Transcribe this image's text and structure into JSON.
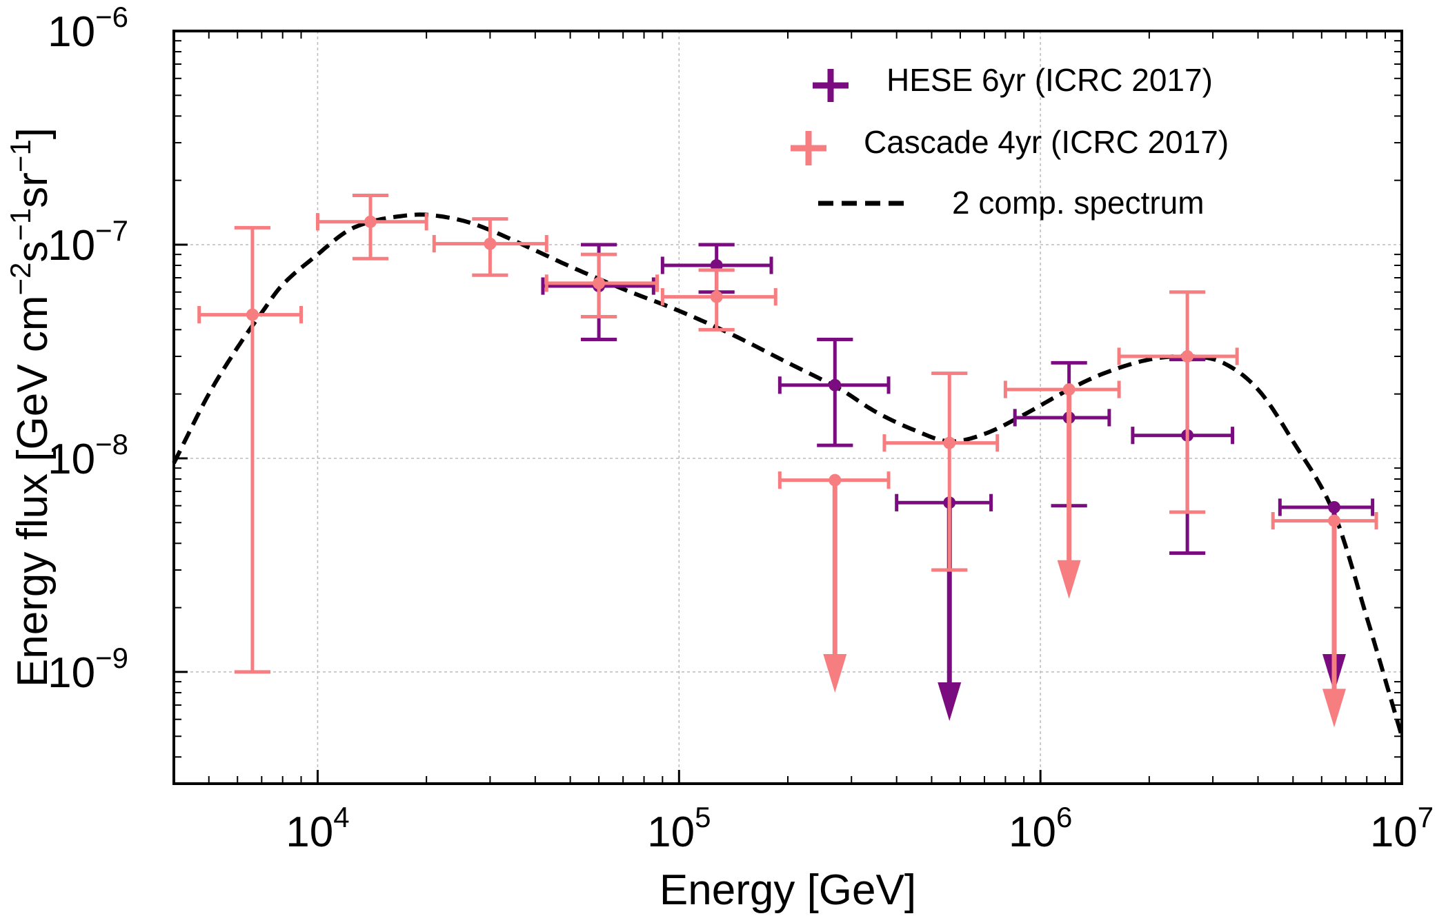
{
  "chart_data": {
    "type": "scatter",
    "xscale": "log",
    "yscale": "log",
    "xlim": [
      4000,
      10000000
    ],
    "ylim": [
      3e-10,
      1e-06
    ],
    "xlabel": "Energy [GeV]",
    "ylabel_parts": [
      "Energy flux [GeV cm",
      "−2",
      "s",
      "−1",
      "sr",
      "−1",
      "]"
    ],
    "x_ticks": [
      {
        "value": 10000,
        "base": "10",
        "exp": "4"
      },
      {
        "value": 100000,
        "base": "10",
        "exp": "5"
      },
      {
        "value": 1000000,
        "base": "10",
        "exp": "6"
      },
      {
        "value": 10000000,
        "base": "10",
        "exp": "7"
      }
    ],
    "y_ticks": [
      {
        "value": 1e-09,
        "base": "10",
        "exp": "−9"
      },
      {
        "value": 1e-08,
        "base": "10",
        "exp": "−8"
      },
      {
        "value": 1e-07,
        "base": "10",
        "exp": "−7"
      },
      {
        "value": 1e-06,
        "base": "10",
        "exp": "−6"
      }
    ],
    "grid": true,
    "legend_position": "top-right",
    "colors": {
      "hese": "#7a0c80",
      "cascade": "#f77e80",
      "model": "#000000"
    },
    "series": [
      {
        "name": "HESE 6yr (ICRC 2017)",
        "kind": "points",
        "color": "#7a0c80",
        "points": [
          {
            "x": 60000,
            "x_lo": 42000,
            "x_hi": 85000,
            "y": 6.4e-08,
            "y_lo": 3.6e-08,
            "y_hi": 1e-07,
            "upper_limit": false
          },
          {
            "x": 127000,
            "x_lo": 90000,
            "x_hi": 180000,
            "y": 8e-08,
            "y_lo": 6e-08,
            "y_hi": 1e-07,
            "upper_limit": false
          },
          {
            "x": 270000,
            "x_lo": 190000,
            "x_hi": 380000,
            "y": 2.2e-08,
            "y_lo": 1.15e-08,
            "y_hi": 3.6e-08,
            "upper_limit": false
          },
          {
            "x": 560000,
            "x_lo": 400000,
            "x_hi": 730000,
            "y": 6.2e-09,
            "y_lo": 6.2e-09,
            "y_hi": 6.2e-09,
            "upper_limit": true,
            "arrow_to": 5.9e-10
          },
          {
            "x": 1200000,
            "x_lo": 850000,
            "x_hi": 1550000,
            "y": 1.55e-08,
            "y_lo": 6e-09,
            "y_hi": 2.8e-08,
            "upper_limit": false
          },
          {
            "x": 2550000,
            "x_lo": 1800000,
            "x_hi": 3400000,
            "y": 1.28e-08,
            "y_lo": 3.6e-09,
            "y_hi": 2.9e-08,
            "upper_limit": false
          },
          {
            "x": 6500000,
            "x_lo": 4600000,
            "x_hi": 8300000,
            "y": 5.9e-09,
            "y_lo": 5.9e-09,
            "y_hi": 5.9e-09,
            "upper_limit": true,
            "arrow_to": 8e-10
          }
        ]
      },
      {
        "name": "Cascade 4yr (ICRC 2017)",
        "kind": "points",
        "color": "#f77e80",
        "points": [
          {
            "x": 6600,
            "x_lo": 4700,
            "x_hi": 9000,
            "y": 4.7e-08,
            "y_lo": 1e-09,
            "y_hi": 1.2e-07,
            "upper_limit": false
          },
          {
            "x": 14000,
            "x_lo": 10000,
            "x_hi": 20000,
            "y": 1.28e-07,
            "y_lo": 8.6e-08,
            "y_hi": 1.7e-07,
            "upper_limit": false
          },
          {
            "x": 30000,
            "x_lo": 21000,
            "x_hi": 43000,
            "y": 1.01e-07,
            "y_lo": 7.2e-08,
            "y_hi": 1.32e-07,
            "upper_limit": false
          },
          {
            "x": 60000,
            "x_lo": 43000,
            "x_hi": 87000,
            "y": 6.6e-08,
            "y_lo": 4.6e-08,
            "y_hi": 9e-08,
            "upper_limit": false
          },
          {
            "x": 127000,
            "x_lo": 90000,
            "x_hi": 185000,
            "y": 5.7e-08,
            "y_lo": 4e-08,
            "y_hi": 7.6e-08,
            "upper_limit": false
          },
          {
            "x": 270000,
            "x_lo": 190000,
            "x_hi": 380000,
            "y": 7.9e-09,
            "y_lo": 7.9e-09,
            "y_hi": 7.9e-09,
            "upper_limit": true,
            "arrow_to": 8e-10
          },
          {
            "x": 560000,
            "x_lo": 370000,
            "x_hi": 760000,
            "y": 1.18e-08,
            "y_lo": 3e-09,
            "y_hi": 2.5e-08,
            "upper_limit": false
          },
          {
            "x": 1200000,
            "x_lo": 800000,
            "x_hi": 1650000,
            "y": 2.1e-08,
            "y_lo": 2.1e-08,
            "y_hi": 2.1e-08,
            "upper_limit": true,
            "arrow_to": 2.2e-09
          },
          {
            "x": 2550000,
            "x_lo": 1650000,
            "x_hi": 3500000,
            "y": 3e-08,
            "y_lo": 5.6e-09,
            "y_hi": 6e-08,
            "upper_limit": false
          },
          {
            "x": 6500000,
            "x_lo": 4400000,
            "x_hi": 8500000,
            "y": 5.1e-09,
            "y_lo": 5.1e-09,
            "y_hi": 5.1e-09,
            "upper_limit": true,
            "arrow_to": 5.5e-10
          }
        ]
      },
      {
        "name": "2 comp. spectrum",
        "kind": "line",
        "style": "dashed",
        "color": "#000000",
        "x": [
          4000,
          5000,
          6000,
          7000,
          8000,
          10000,
          12000,
          14000,
          17000,
          20000,
          25000,
          30000,
          40000,
          50000,
          70000,
          100000,
          140000,
          200000,
          280000,
          350000,
          450000,
          560000,
          700000,
          900000,
          1200000,
          1500000,
          2000000,
          2600000,
          3200000,
          4000000,
          5000000,
          6500000,
          8000000,
          10000000
        ],
        "y": [
          9.5e-09,
          2e-08,
          3.3e-08,
          4.8e-08,
          6.5e-08,
          9e-08,
          1.15e-07,
          1.28e-07,
          1.36e-07,
          1.38e-07,
          1.3e-07,
          1.17e-07,
          9.4e-08,
          7.9e-08,
          6.2e-08,
          4.9e-08,
          3.8e-08,
          2.8e-08,
          2.1e-08,
          1.65e-08,
          1.35e-08,
          1.2e-08,
          1.3e-08,
          1.6e-08,
          2.1e-08,
          2.5e-08,
          2.9e-08,
          3e-08,
          2.8e-08,
          2.1e-08,
          1.2e-08,
          5.5e-09,
          1.8e-09,
          5e-10
        ]
      }
    ]
  }
}
